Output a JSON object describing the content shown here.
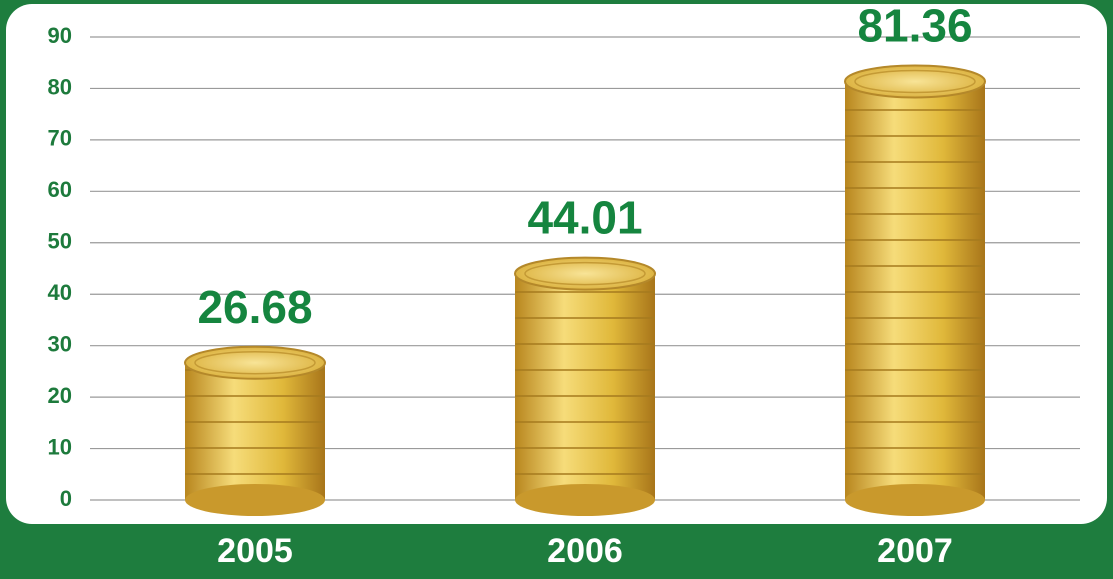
{
  "chart_data": {
    "type": "bar",
    "categories": [
      "2005",
      "2006",
      "2007"
    ],
    "values": [
      26.68,
      44.01,
      81.36
    ],
    "color": "#e0b83a",
    "ylim": [
      0,
      90
    ],
    "yticks": [
      0,
      10,
      20,
      30,
      40,
      50,
      60,
      70,
      80,
      90
    ],
    "grid": true
  }
}
